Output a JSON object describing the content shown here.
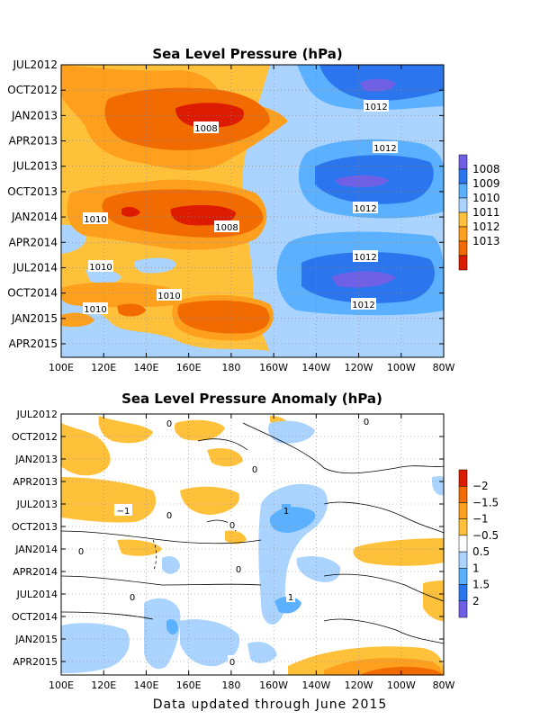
{
  "footer": "Data updated through June 2015",
  "chart_data": [
    {
      "type": "heatmap",
      "title": "Sea Level Pressure (hPa)",
      "xlabel": "",
      "ylabel": "",
      "x_ticks": [
        "100E",
        "120E",
        "140E",
        "160E",
        "180",
        "160W",
        "140W",
        "120W",
        "100W",
        "80W"
      ],
      "y_ticks": [
        "JUL2012",
        "OCT2012",
        "JAN2013",
        "APR2013",
        "JUL2013",
        "OCT2013",
        "JAN2014",
        "APR2014",
        "JUL2014",
        "OCT2014",
        "JAN2015",
        "APR2015"
      ],
      "grid": true,
      "colorbar": {
        "labels": [
          "1008",
          "1009",
          "1010",
          "1011",
          "1012",
          "1013"
        ],
        "colors": [
          "#dd1b00",
          "#f26b00",
          "#ff9f1e",
          "#ffc13a",
          "#aad4ff",
          "#5bb0ff",
          "#2b75ee",
          "#7060e6"
        ]
      },
      "contour_labels": [
        "1012",
        "1008",
        "1012",
        "1012",
        "1010",
        "1008",
        "1012",
        "1010",
        "1010",
        "1012",
        "1010"
      ]
    },
    {
      "type": "heatmap",
      "title": "Sea Level Pressure Anomaly (hPa)",
      "xlabel": "",
      "ylabel": "",
      "x_ticks": [
        "100E",
        "120E",
        "140E",
        "160E",
        "180",
        "160W",
        "140W",
        "120W",
        "100W",
        "80W"
      ],
      "y_ticks": [
        "JUL2012",
        "OCT2012",
        "JAN2013",
        "APR2013",
        "JUL2013",
        "OCT2013",
        "JAN2014",
        "APR2014",
        "JUL2014",
        "OCT2014",
        "JAN2015",
        "APR2015"
      ],
      "grid": true,
      "colorbar": {
        "labels": [
          "2",
          "1.5",
          "1",
          "0.5",
          "−0.5",
          "−1",
          "−1.5",
          "−2"
        ],
        "colors": [
          "#7060e6",
          "#2b75ee",
          "#5bb0ff",
          "#aad4ff",
          "#ffffff",
          "#ffc13a",
          "#ff9f1e",
          "#f26b00",
          "#dd1b00"
        ]
      },
      "contour_labels": [
        "0",
        "0",
        "0",
        "0",
        "0",
        "0",
        "−1",
        "1",
        "1",
        "0",
        "0",
        "0"
      ]
    }
  ]
}
